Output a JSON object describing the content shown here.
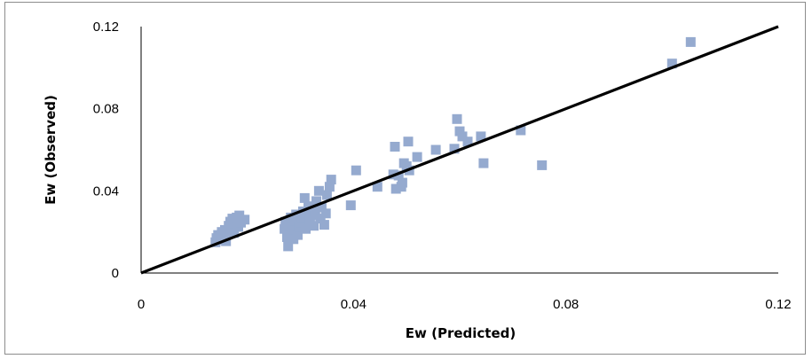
{
  "chart_data": {
    "type": "scatter",
    "xlabel": "Ew (Predicted)",
    "ylabel": "Ew (Observed)",
    "xlim": [
      0,
      0.12
    ],
    "ylim": [
      0,
      0.12
    ],
    "xticks": [
      "0",
      "0.04",
      "0.08",
      "0.12"
    ],
    "yticks": [
      "0",
      "0.04",
      "0.08",
      "0.12"
    ],
    "grid": false,
    "legend": "none",
    "marker_color": "#95aacf",
    "line_color": "#000000",
    "line": {
      "x": [
        0,
        0.12
      ],
      "y": [
        0,
        0.12
      ]
    },
    "points": [
      [
        0.014,
        0.015
      ],
      [
        0.0142,
        0.017
      ],
      [
        0.0145,
        0.0185
      ],
      [
        0.015,
        0.016
      ],
      [
        0.0152,
        0.02
      ],
      [
        0.0155,
        0.0175
      ],
      [
        0.0158,
        0.021
      ],
      [
        0.016,
        0.0155
      ],
      [
        0.0163,
        0.019
      ],
      [
        0.0165,
        0.023
      ],
      [
        0.0168,
        0.025
      ],
      [
        0.017,
        0.0215
      ],
      [
        0.0172,
        0.0265
      ],
      [
        0.0175,
        0.0195
      ],
      [
        0.0178,
        0.024
      ],
      [
        0.018,
        0.027
      ],
      [
        0.0183,
        0.0225
      ],
      [
        0.0185,
        0.028
      ],
      [
        0.0188,
        0.0245
      ],
      [
        0.0195,
        0.026
      ],
      [
        0.027,
        0.0215
      ],
      [
        0.0272,
        0.025
      ],
      [
        0.0275,
        0.0175
      ],
      [
        0.0277,
        0.013
      ],
      [
        0.028,
        0.023
      ],
      [
        0.0282,
        0.027
      ],
      [
        0.0285,
        0.02
      ],
      [
        0.0287,
        0.0165
      ],
      [
        0.029,
        0.0255
      ],
      [
        0.0292,
        0.0285
      ],
      [
        0.0295,
        0.0185
      ],
      [
        0.0298,
        0.0225
      ],
      [
        0.03,
        0.0245
      ],
      [
        0.0303,
        0.027
      ],
      [
        0.0305,
        0.03
      ],
      [
        0.0308,
        0.0365
      ],
      [
        0.031,
        0.0215
      ],
      [
        0.0315,
        0.0325
      ],
      [
        0.0318,
        0.026
      ],
      [
        0.032,
        0.028
      ],
      [
        0.0325,
        0.023
      ],
      [
        0.0328,
        0.03
      ],
      [
        0.033,
        0.035
      ],
      [
        0.0335,
        0.04
      ],
      [
        0.0338,
        0.0265
      ],
      [
        0.034,
        0.032
      ],
      [
        0.0345,
        0.0235
      ],
      [
        0.0348,
        0.029
      ],
      [
        0.035,
        0.038
      ],
      [
        0.0355,
        0.042
      ],
      [
        0.0358,
        0.0455
      ],
      [
        0.0395,
        0.033
      ],
      [
        0.0405,
        0.05
      ],
      [
        0.0445,
        0.042
      ],
      [
        0.0475,
        0.048
      ],
      [
        0.0478,
        0.0615
      ],
      [
        0.048,
        0.041
      ],
      [
        0.0485,
        0.0475
      ],
      [
        0.049,
        0.042
      ],
      [
        0.0492,
        0.044
      ],
      [
        0.0495,
        0.0535
      ],
      [
        0.05,
        0.052
      ],
      [
        0.0503,
        0.064
      ],
      [
        0.0505,
        0.05
      ],
      [
        0.052,
        0.0565
      ],
      [
        0.0555,
        0.06
      ],
      [
        0.059,
        0.0605
      ],
      [
        0.0595,
        0.075
      ],
      [
        0.06,
        0.069
      ],
      [
        0.0605,
        0.0665
      ],
      [
        0.0615,
        0.064
      ],
      [
        0.064,
        0.0665
      ],
      [
        0.0645,
        0.0535
      ],
      [
        0.0715,
        0.0695
      ],
      [
        0.0755,
        0.0525
      ],
      [
        0.1,
        0.102
      ],
      [
        0.1035,
        0.1125
      ]
    ]
  }
}
